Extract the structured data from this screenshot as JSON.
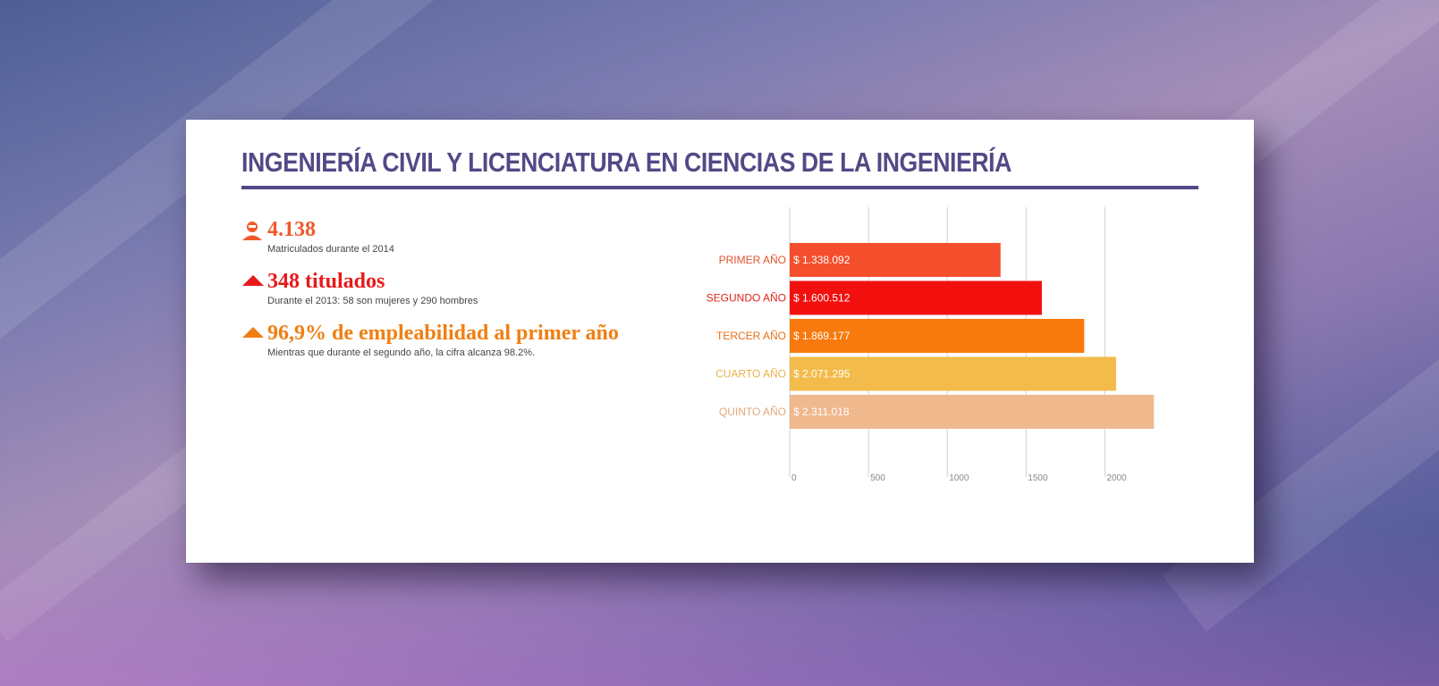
{
  "header": {
    "title": "INGENIERÍA CIVIL Y LICENCIATURA EN CIENCIAS DE LA INGENIERÍA"
  },
  "stats": [
    {
      "value": "4.138",
      "caption": "Matriculados durante el 2014",
      "icon": "person-icon",
      "color": "#f05a2a"
    },
    {
      "value": "348 titulados",
      "caption": "Durante el 2013: 58 son mujeres y 290 hombres",
      "icon": "graduation-cap-icon",
      "color": "#e8191a"
    },
    {
      "value": "96,9% de empleabilidad al primer año",
      "caption": "Mientras que durante el segundo año, la cifra alcanza 98.2%.",
      "icon": "graduation-cap-icon",
      "color": "#f07f12"
    }
  ],
  "chart_data": {
    "type": "bar",
    "orientation": "horizontal",
    "categories": [
      "PRIMER AÑO",
      "SEGUNDO AÑO",
      "TERCER AÑO",
      "CUARTO AÑO",
      "QUINTO AÑO"
    ],
    "values": [
      1338,
      1600,
      1869,
      2071,
      2311
    ],
    "value_labels": [
      "$ 1.338.092",
      "$ 1.600.512",
      "$ 1.869.177",
      "$ 2.071.295",
      "$ 2.311.018"
    ],
    "colors": [
      "#f44e2c",
      "#f2100f",
      "#f87a0e",
      "#f3bb4b",
      "#f0b88d"
    ],
    "label_colors": [
      "#e0532d",
      "#e0251c",
      "#e86f16",
      "#e8b24a",
      "#e5a77a"
    ],
    "xlim": [
      0,
      2300
    ],
    "xticks": [
      "0",
      "500",
      "1000",
      "1500",
      "2000"
    ],
    "grid": true
  }
}
